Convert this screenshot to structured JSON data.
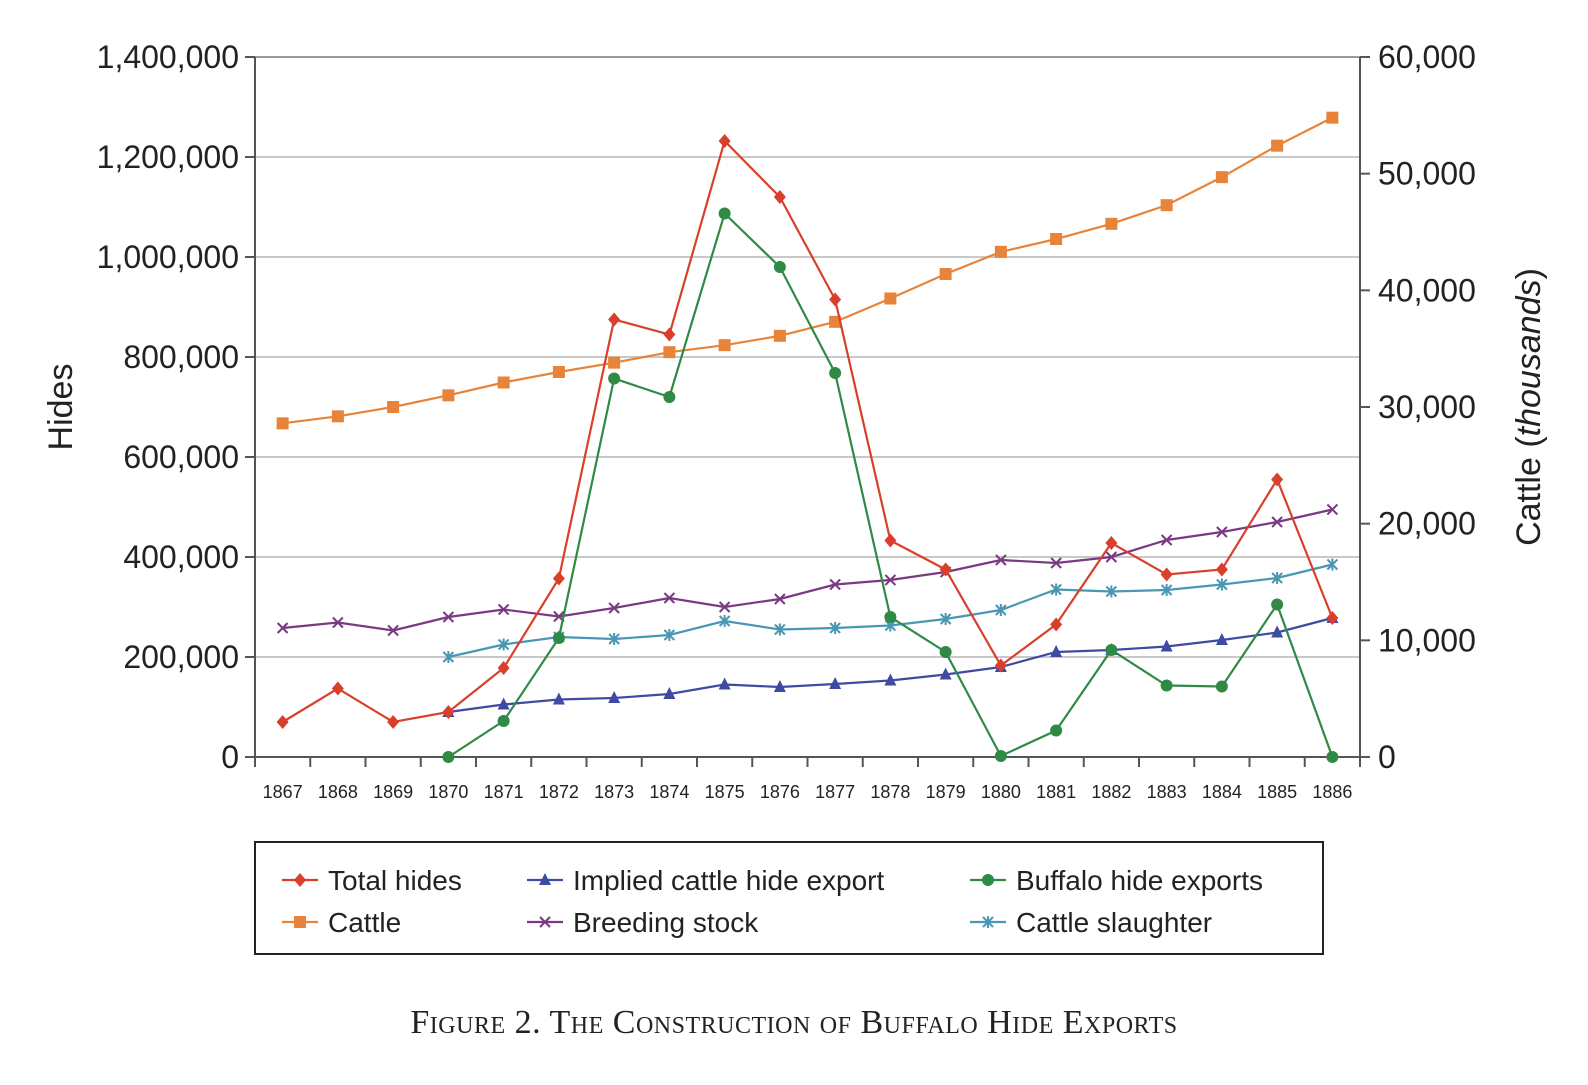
{
  "chart_data": {
    "type": "line",
    "caption": "Figure 2. The Construction of Buffalo Hide Exports",
    "categories": [
      "1867",
      "1868",
      "1869",
      "1870",
      "1871",
      "1872",
      "1873",
      "1874",
      "1875",
      "1876",
      "1877",
      "1878",
      "1879",
      "1880",
      "1881",
      "1882",
      "1883",
      "1884",
      "1885",
      "1886"
    ],
    "y_left": {
      "label": "Hides",
      "lim": [
        0,
        1400000
      ],
      "ticks": [
        "0",
        "200,000",
        "400,000",
        "600,000",
        "800,000",
        "1,000,000",
        "1,200,000",
        "1,400,000"
      ]
    },
    "y_right": {
      "label_prefix": "Cattle (",
      "label_italic": "thousands",
      "label_suffix": ")",
      "lim": [
        0,
        60000
      ],
      "ticks": [
        "0",
        "10,000",
        "20,000",
        "30,000",
        "40,000",
        "50,000",
        "60,000"
      ]
    },
    "grid": "horizontal",
    "legend_position": "bottom",
    "series": [
      {
        "name": "Total hides",
        "axis": "left",
        "color": "#d9402b",
        "marker": "diamond",
        "values": [
          70000,
          137000,
          70000,
          90000,
          178000,
          357000,
          875000,
          845000,
          1232000,
          1120000,
          915000,
          433000,
          375000,
          183000,
          265000,
          428000,
          365000,
          375000,
          555000,
          278000
        ]
      },
      {
        "name": "Implied cattle hide export",
        "axis": "left",
        "color": "#3f4aa3",
        "marker": "triangle",
        "values": [
          null,
          null,
          null,
          90000,
          105000,
          115000,
          118000,
          126000,
          145000,
          140000,
          146000,
          153000,
          165000,
          180000,
          210000,
          214000,
          221000,
          234000,
          249000,
          278000
        ]
      },
      {
        "name": "Buffalo hide exports",
        "axis": "left",
        "color": "#2f8a45",
        "marker": "circle",
        "values": [
          null,
          null,
          null,
          0,
          72000,
          238000,
          757000,
          720000,
          1087000,
          980000,
          768000,
          280000,
          210000,
          2000,
          53000,
          214000,
          143000,
          141000,
          305000,
          0
        ]
      },
      {
        "name": "Cattle",
        "axis": "right",
        "color": "#e8833a",
        "marker": "square",
        "values": [
          28600,
          29200,
          30000,
          31000,
          32100,
          33000,
          33800,
          34700,
          35300,
          36100,
          37300,
          39300,
          41400,
          43300,
          44400,
          45700,
          47300,
          49700,
          52400,
          54800
        ]
      },
      {
        "name": "Breeding stock",
        "axis": "left",
        "color": "#7a3a82",
        "marker": "x",
        "values": [
          258000,
          269000,
          253000,
          280000,
          295000,
          281000,
          298000,
          318000,
          300000,
          316000,
          345000,
          354000,
          370000,
          394000,
          388000,
          400000,
          434000,
          450000,
          470000,
          495000
        ]
      },
      {
        "name": "Cattle slaughter",
        "axis": "left",
        "color": "#4a97b3",
        "marker": "star",
        "values": [
          null,
          null,
          null,
          200000,
          225000,
          240000,
          236000,
          244000,
          272000,
          255000,
          258000,
          263000,
          276000,
          294000,
          335000,
          331000,
          334000,
          345000,
          358000,
          385000
        ]
      }
    ]
  }
}
